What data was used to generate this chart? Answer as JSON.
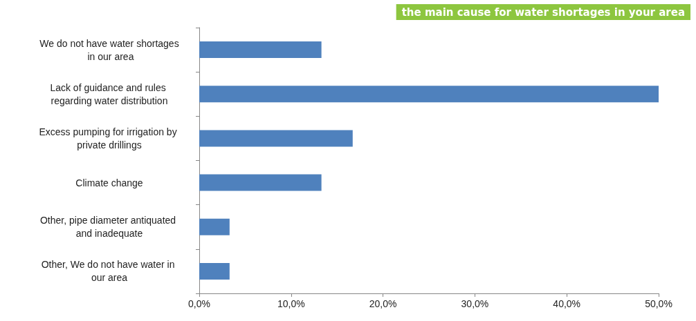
{
  "chart_data": {
    "type": "bar",
    "orientation": "horizontal",
    "title": "the main cause for water shortages in your area",
    "categories": [
      "We do not have water shortages in our area",
      "Lack of guidance and rules regarding water distribution",
      "Excess pumping for irrigation by private drillings",
      "Climate change",
      "Other, pipe diameter antiquated and inadequate",
      "Other, We do not have water in our area"
    ],
    "values": [
      13.3,
      50,
      16.7,
      13.3,
      3.3,
      3.3
    ],
    "color": "#4f81bd",
    "xlim": [
      0,
      50
    ],
    "xticks": [
      {
        "value": 0,
        "label": "0,0%"
      },
      {
        "value": 10,
        "label": "10,0%"
      },
      {
        "value": 20,
        "label": "20,0%"
      },
      {
        "value": 30,
        "label": "30,0%"
      },
      {
        "value": 40,
        "label": "40,0%"
      },
      {
        "value": 50,
        "label": "50,0%"
      }
    ],
    "grid": false
  }
}
